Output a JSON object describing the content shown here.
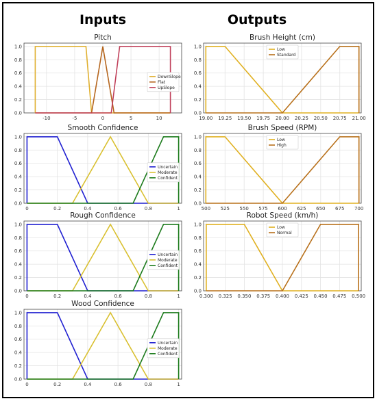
{
  "headers": {
    "inputs": "Inputs",
    "outputs": "Outputs"
  },
  "chart_data": [
    {
      "type": "line",
      "title": "Pitch",
      "xlim": [
        -14,
        14
      ],
      "ylim": [
        0,
        1.05
      ],
      "xticks": [
        -10,
        -5,
        0,
        5,
        10
      ],
      "yticks": [
        0.0,
        0.2,
        0.4,
        0.6,
        0.8,
        1.0
      ],
      "legend": "center-right",
      "series": [
        {
          "name": "DownSlope",
          "color": "#e0b030",
          "x": [
            -12,
            -12,
            -3,
            -2,
            3,
            12
          ],
          "y": [
            0,
            1,
            1,
            0,
            0,
            0
          ]
        },
        {
          "name": "Flat",
          "color": "#b5651d",
          "x": [
            -12,
            -2,
            0,
            2,
            12
          ],
          "y": [
            0,
            0,
            1,
            0,
            0
          ]
        },
        {
          "name": "UpSlope",
          "color": "#c0405a",
          "x": [
            -12,
            1.5,
            3,
            12,
            12
          ],
          "y": [
            0,
            0,
            1,
            1,
            0
          ]
        }
      ]
    },
    {
      "type": "line",
      "title": "Smooth Confidence",
      "xlim": [
        -0.02,
        1.02
      ],
      "ylim": [
        0,
        1.05
      ],
      "xticks": [
        0.0,
        0.2,
        0.4,
        0.6,
        0.8,
        1.0
      ],
      "yticks": [
        0.0,
        0.2,
        0.4,
        0.6,
        0.8,
        1.0
      ],
      "legend": "center-right",
      "series": [
        {
          "name": "Uncertain",
          "color": "#1f1fd1",
          "x": [
            0,
            0,
            0.2,
            0.4,
            1.0
          ],
          "y": [
            0,
            1,
            1,
            0,
            0
          ]
        },
        {
          "name": "Moderate",
          "color": "#d9c030",
          "x": [
            0,
            0.3,
            0.55,
            0.8,
            1.0
          ],
          "y": [
            0,
            0,
            1,
            0,
            0
          ]
        },
        {
          "name": "Confident",
          "color": "#1a7a1a",
          "x": [
            0,
            0.7,
            0.9,
            1.0,
            1.0
          ],
          "y": [
            0,
            0,
            1,
            1,
            0
          ]
        }
      ]
    },
    {
      "type": "line",
      "title": "Rough Confidence",
      "xlim": [
        -0.02,
        1.02
      ],
      "ylim": [
        0,
        1.05
      ],
      "xticks": [
        0.0,
        0.2,
        0.4,
        0.6,
        0.8,
        1.0
      ],
      "yticks": [
        0.0,
        0.2,
        0.4,
        0.6,
        0.8,
        1.0
      ],
      "legend": "center-right",
      "series": [
        {
          "name": "Uncertain",
          "color": "#1f1fd1",
          "x": [
            0,
            0,
            0.2,
            0.4,
            1.0
          ],
          "y": [
            0,
            1,
            1,
            0,
            0
          ]
        },
        {
          "name": "Moderate",
          "color": "#d9c030",
          "x": [
            0,
            0.3,
            0.55,
            0.8,
            1.0
          ],
          "y": [
            0,
            0,
            1,
            0,
            0
          ]
        },
        {
          "name": "Confident",
          "color": "#1a7a1a",
          "x": [
            0,
            0.7,
            0.9,
            1.0,
            1.0
          ],
          "y": [
            0,
            0,
            1,
            1,
            0
          ]
        }
      ]
    },
    {
      "type": "line",
      "title": "Wood Confidence",
      "xlim": [
        -0.02,
        1.02
      ],
      "ylim": [
        0,
        1.05
      ],
      "xticks": [
        0.0,
        0.2,
        0.4,
        0.6,
        0.8,
        1.0
      ],
      "yticks": [
        0.0,
        0.2,
        0.4,
        0.6,
        0.8,
        1.0
      ],
      "legend": "center-right",
      "series": [
        {
          "name": "Uncertain",
          "color": "#1f1fd1",
          "x": [
            0,
            0,
            0.2,
            0.4,
            1.0
          ],
          "y": [
            0,
            1,
            1,
            0,
            0
          ]
        },
        {
          "name": "Moderate",
          "color": "#d9c030",
          "x": [
            0,
            0.3,
            0.55,
            0.8,
            1.0
          ],
          "y": [
            0,
            0,
            1,
            0,
            0
          ]
        },
        {
          "name": "Confident",
          "color": "#1a7a1a",
          "x": [
            0,
            0.7,
            0.9,
            1.0,
            1.0
          ],
          "y": [
            0,
            0,
            1,
            1,
            0
          ]
        }
      ]
    },
    {
      "type": "line",
      "title": "Brush Height (cm)",
      "xlim": [
        18.97,
        21.03
      ],
      "ylim": [
        0,
        1.05
      ],
      "xticks": [
        19.0,
        19.25,
        19.5,
        19.75,
        20.0,
        20.25,
        20.5,
        20.75,
        21.0
      ],
      "xtick_labels": [
        "19.00",
        "19.25",
        "19.50",
        "19.75",
        "20.00",
        "20.25",
        "20.50",
        "20.75",
        "21.00"
      ],
      "yticks": [
        0.0,
        0.2,
        0.4,
        0.6,
        0.8,
        1.0
      ],
      "legend": "top-center",
      "series": [
        {
          "name": "Low",
          "color": "#e0b020",
          "x": [
            19.0,
            19.0,
            19.25,
            20.0,
            21.0
          ],
          "y": [
            0,
            1,
            1,
            0,
            0
          ]
        },
        {
          "name": "Standard",
          "color": "#b8701a",
          "x": [
            19.0,
            20.0,
            20.75,
            21.0,
            21.0
          ],
          "y": [
            0,
            0,
            1,
            1,
            0
          ]
        }
      ]
    },
    {
      "type": "line",
      "title": "Brush Speed (RPM)",
      "xlim": [
        497,
        703
      ],
      "ylim": [
        0,
        1.05
      ],
      "xticks": [
        500,
        525,
        550,
        575,
        600,
        625,
        650,
        675,
        700
      ],
      "yticks": [
        0.0,
        0.2,
        0.4,
        0.6,
        0.8,
        1.0
      ],
      "legend": "top-center",
      "series": [
        {
          "name": "Low",
          "color": "#e0b020",
          "x": [
            500,
            500,
            525,
            600,
            700
          ],
          "y": [
            0,
            1,
            1,
            0,
            0
          ]
        },
        {
          "name": "High",
          "color": "#b8701a",
          "x": [
            500,
            600,
            675,
            700,
            700
          ],
          "y": [
            0,
            0,
            1,
            1,
            0
          ]
        }
      ]
    },
    {
      "type": "line",
      "title": "Robot Speed (km/h)",
      "xlim": [
        0.2965,
        0.5035
      ],
      "ylim": [
        0,
        1.05
      ],
      "xticks": [
        0.3,
        0.325,
        0.35,
        0.375,
        0.4,
        0.425,
        0.45,
        0.475,
        0.5
      ],
      "xtick_labels": [
        "0.300",
        "0.325",
        "0.350",
        "0.375",
        "0.400",
        "0.425",
        "0.450",
        "0.475",
        "0.500"
      ],
      "yticks": [
        0.0,
        0.2,
        0.4,
        0.6,
        0.8,
        1.0
      ],
      "legend": "top-center",
      "series": [
        {
          "name": "Low",
          "color": "#e0b020",
          "x": [
            0.3,
            0.3,
            0.35,
            0.4,
            0.5
          ],
          "y": [
            0,
            1,
            1,
            0,
            0
          ]
        },
        {
          "name": "Normal",
          "color": "#b8701a",
          "x": [
            0.3,
            0.4,
            0.45,
            0.5,
            0.5
          ],
          "y": [
            0,
            0,
            1,
            1,
            0
          ]
        }
      ]
    }
  ]
}
